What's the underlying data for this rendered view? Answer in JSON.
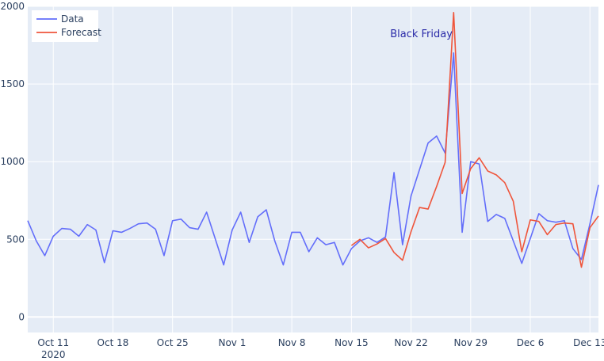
{
  "chart_data": {
    "type": "line",
    "x_start": "2020-10-08",
    "x_end": "2020-12-14",
    "y_range": [
      -100,
      2000
    ],
    "grid": true,
    "legend_position": "top-left",
    "annotation": {
      "text": "Black Friday",
      "x": "2020-11-26",
      "y": 1800,
      "color": "#2a2aa8"
    },
    "x_ticks": [
      {
        "x": "2020-10-11",
        "label": "Oct 11",
        "sub": "2020"
      },
      {
        "x": "2020-10-18",
        "label": "Oct 18",
        "sub": ""
      },
      {
        "x": "2020-10-25",
        "label": "Oct 25",
        "sub": ""
      },
      {
        "x": "2020-11-01",
        "label": "Nov 1",
        "sub": ""
      },
      {
        "x": "2020-11-08",
        "label": "Nov 8",
        "sub": ""
      },
      {
        "x": "2020-11-15",
        "label": "Nov 15",
        "sub": ""
      },
      {
        "x": "2020-11-22",
        "label": "Nov 22",
        "sub": ""
      },
      {
        "x": "2020-11-29",
        "label": "Nov 29",
        "sub": ""
      },
      {
        "x": "2020-12-06",
        "label": "Dec 6",
        "sub": ""
      },
      {
        "x": "2020-12-13",
        "label": "Dec 13",
        "sub": ""
      }
    ],
    "y_ticks": [
      0,
      500,
      1000,
      1500,
      2000
    ],
    "series": [
      {
        "name": "Data",
        "color": "#636efa",
        "points": [
          [
            "2020-10-08",
            620
          ],
          [
            "2020-10-09",
            490
          ],
          [
            "2020-10-10",
            395
          ],
          [
            "2020-10-11",
            520
          ],
          [
            "2020-10-12",
            570
          ],
          [
            "2020-10-13",
            565
          ],
          [
            "2020-10-14",
            520
          ],
          [
            "2020-10-15",
            595
          ],
          [
            "2020-10-16",
            560
          ],
          [
            "2020-10-17",
            350
          ],
          [
            "2020-10-18",
            555
          ],
          [
            "2020-10-19",
            545
          ],
          [
            "2020-10-20",
            570
          ],
          [
            "2020-10-21",
            600
          ],
          [
            "2020-10-22",
            605
          ],
          [
            "2020-10-23",
            565
          ],
          [
            "2020-10-24",
            395
          ],
          [
            "2020-10-25",
            620
          ],
          [
            "2020-10-26",
            630
          ],
          [
            "2020-10-27",
            575
          ],
          [
            "2020-10-28",
            565
          ],
          [
            "2020-10-29",
            675
          ],
          [
            "2020-10-30",
            505
          ],
          [
            "2020-10-31",
            335
          ],
          [
            "2020-11-01",
            560
          ],
          [
            "2020-11-02",
            675
          ],
          [
            "2020-11-03",
            480
          ],
          [
            "2020-11-04",
            645
          ],
          [
            "2020-11-05",
            690
          ],
          [
            "2020-11-06",
            490
          ],
          [
            "2020-11-07",
            335
          ],
          [
            "2020-11-08",
            545
          ],
          [
            "2020-11-09",
            545
          ],
          [
            "2020-11-10",
            420
          ],
          [
            "2020-11-11",
            510
          ],
          [
            "2020-11-12",
            465
          ],
          [
            "2020-11-13",
            480
          ],
          [
            "2020-11-14",
            335
          ],
          [
            "2020-11-15",
            440
          ],
          [
            "2020-11-16",
            490
          ],
          [
            "2020-11-17",
            510
          ],
          [
            "2020-11-18",
            480
          ],
          [
            "2020-11-19",
            515
          ],
          [
            "2020-11-20",
            930
          ],
          [
            "2020-11-21",
            465
          ],
          [
            "2020-11-22",
            780
          ],
          [
            "2020-11-23",
            950
          ],
          [
            "2020-11-24",
            1120
          ],
          [
            "2020-11-25",
            1165
          ],
          [
            "2020-11-26",
            1055
          ],
          [
            "2020-11-27",
            1700
          ],
          [
            "2020-11-28",
            545
          ],
          [
            "2020-11-29",
            1000
          ],
          [
            "2020-11-30",
            985
          ],
          [
            "2020-12-01",
            615
          ],
          [
            "2020-12-02",
            660
          ],
          [
            "2020-12-03",
            635
          ],
          [
            "2020-12-04",
            490
          ],
          [
            "2020-12-05",
            345
          ],
          [
            "2020-12-06",
            505
          ],
          [
            "2020-12-07",
            665
          ],
          [
            "2020-12-08",
            620
          ],
          [
            "2020-12-09",
            610
          ],
          [
            "2020-12-10",
            620
          ],
          [
            "2020-12-11",
            440
          ],
          [
            "2020-12-12",
            370
          ],
          [
            "2020-12-13",
            600
          ],
          [
            "2020-12-14",
            850
          ]
        ]
      },
      {
        "name": "Forecast",
        "color": "#ef553b",
        "points": [
          [
            "2020-11-15",
            460
          ],
          [
            "2020-11-16",
            500
          ],
          [
            "2020-11-17",
            445
          ],
          [
            "2020-11-18",
            470
          ],
          [
            "2020-11-19",
            505
          ],
          [
            "2020-11-20",
            415
          ],
          [
            "2020-11-21",
            365
          ],
          [
            "2020-11-22",
            550
          ],
          [
            "2020-11-23",
            705
          ],
          [
            "2020-11-24",
            695
          ],
          [
            "2020-11-25",
            840
          ],
          [
            "2020-11-26",
            995
          ],
          [
            "2020-11-27",
            1960
          ],
          [
            "2020-11-28",
            795
          ],
          [
            "2020-11-29",
            955
          ],
          [
            "2020-11-30",
            1025
          ],
          [
            "2020-12-01",
            940
          ],
          [
            "2020-12-02",
            915
          ],
          [
            "2020-12-03",
            865
          ],
          [
            "2020-12-04",
            745
          ],
          [
            "2020-12-05",
            420
          ],
          [
            "2020-12-06",
            625
          ],
          [
            "2020-12-07",
            615
          ],
          [
            "2020-12-08",
            530
          ],
          [
            "2020-12-09",
            595
          ],
          [
            "2020-12-10",
            605
          ],
          [
            "2020-12-11",
            600
          ],
          [
            "2020-12-12",
            320
          ],
          [
            "2020-12-13",
            575
          ],
          [
            "2020-12-14",
            650
          ]
        ]
      }
    ]
  }
}
